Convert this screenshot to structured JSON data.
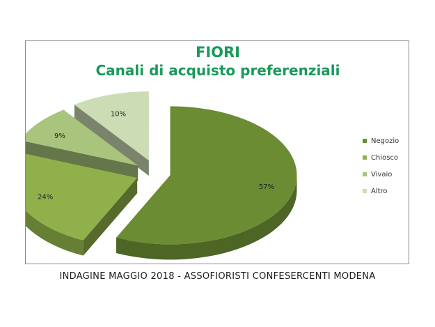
{
  "chart_data": {
    "type": "pie",
    "title": "FIORI",
    "subtitle": "Canali di acquisto preferenziali",
    "categories": [
      "Negozio",
      "Chiosco",
      "Vivaio",
      "Altro"
    ],
    "values": [
      57,
      24,
      9,
      10
    ],
    "data_labels": [
      "57%",
      "24%",
      "9%",
      "10%"
    ],
    "legend_position": "right",
    "style": "3d-exploded",
    "colors": {
      "Negozio": "#6b8c33",
      "Chiosco": "#8fb04a",
      "Vivaio": "#a9c47c",
      "Altro": "#ccdcb4"
    }
  },
  "footer": "INDAGINE MAGGIO 2018 - ASSOFIORISTI CONFESERCENTI MODENA"
}
